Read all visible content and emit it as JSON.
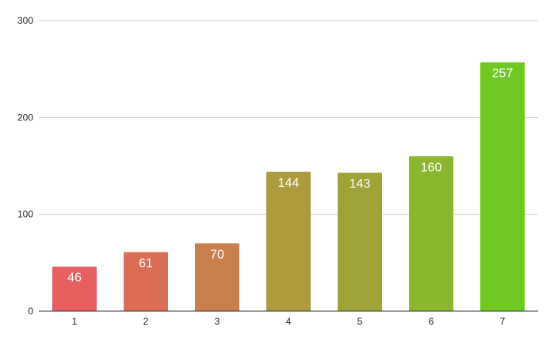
{
  "chart_data": {
    "type": "bar",
    "categories": [
      "1",
      "2",
      "3",
      "4",
      "5",
      "6",
      "7"
    ],
    "values": [
      46,
      61,
      70,
      144,
      143,
      160,
      257
    ],
    "bar_colors": [
      "#e85f5f",
      "#dc6e55",
      "#c87f4b",
      "#ad9b3d",
      "#a0a338",
      "#8bb72f",
      "#72c822"
    ],
    "title": "",
    "xlabel": "",
    "ylabel": "",
    "ylim": [
      0,
      300
    ],
    "yticks": [
      0,
      100,
      200,
      300
    ],
    "grid": true,
    "legend": "none",
    "data_labels": true
  }
}
